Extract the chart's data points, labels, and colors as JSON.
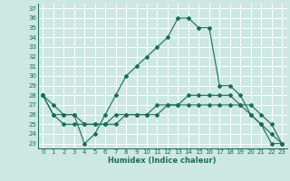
{
  "xlabel": "Humidex (Indice chaleur)",
  "bg_color": "#cce8e0",
  "grid_color": "#ffffff",
  "line_color": "#1a6b5a",
  "xlim": [
    -0.5,
    23.5
  ],
  "ylim": [
    22.5,
    37.5
  ],
  "xticks": [
    0,
    1,
    2,
    3,
    4,
    5,
    6,
    7,
    8,
    9,
    10,
    11,
    12,
    13,
    14,
    15,
    16,
    17,
    18,
    19,
    20,
    21,
    22,
    23
  ],
  "yticks": [
    23,
    24,
    25,
    26,
    27,
    28,
    29,
    30,
    31,
    32,
    33,
    34,
    35,
    36,
    37
  ],
  "line1_y": [
    28,
    26,
    26,
    26,
    23,
    24,
    26,
    28,
    30,
    31,
    32,
    33,
    34,
    36,
    36,
    35,
    35,
    29,
    29,
    28,
    26,
    25,
    23,
    23
  ],
  "line2_y": [
    28,
    26,
    25,
    25,
    25,
    25,
    25,
    26,
    26,
    26,
    26,
    27,
    27,
    27,
    27,
    27,
    27,
    27,
    27,
    27,
    26,
    25,
    24,
    23
  ],
  "line3_y": [
    28,
    27,
    26,
    26,
    25,
    25,
    25,
    25,
    26,
    26,
    26,
    26,
    27,
    27,
    28,
    28,
    28,
    28,
    28,
    27,
    27,
    26,
    25,
    23
  ],
  "xlabel_fontsize": 6,
  "tick_labelsize": 5,
  "lw": 0.8,
  "ms": 2.0
}
